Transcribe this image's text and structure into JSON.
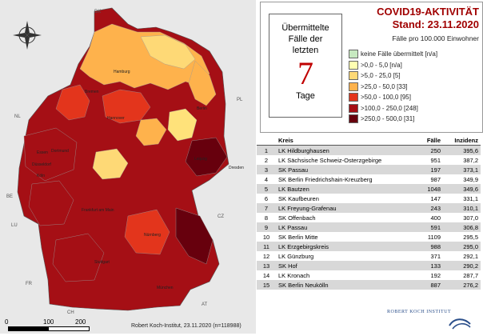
{
  "map": {
    "countries": [
      "DK",
      "NL",
      "BE",
      "LU",
      "FR",
      "CH",
      "AT",
      "CZ",
      "PL"
    ],
    "cities": [
      "Hamburg",
      "Bremen",
      "Hannover",
      "Berlin",
      "Essen",
      "Dortmund",
      "Düsseldorf",
      "Köln",
      "Leipzig",
      "Dresden",
      "Frankfurt am Main",
      "Nürnberg",
      "Stuttgart",
      "München"
    ],
    "scale": {
      "zero": "0",
      "mid": "100",
      "end": "200 km"
    },
    "credit": "Robert Koch-Institut, 23.11.2020 (n=118988)",
    "colors": {
      "c0": "#c7e9c0",
      "c1": "#ffffb2",
      "c2": "#fed976",
      "c3": "#feb24c",
      "c4": "#e3351c",
      "c5": "#a50f15",
      "c6": "#67000d"
    }
  },
  "panel": {
    "days_text_1": "Übermittelte",
    "days_text_2": "Fälle der",
    "days_text_3": "letzten",
    "days_number": "7",
    "days_unit": "Tage",
    "title_1": "COVID19-AKTIVITÄT",
    "title_2": "Stand: 23.11.2020",
    "subtitle": "Fälle pro 100.000 Einwohner",
    "legend": [
      {
        "label": "keine Fälle übermittelt [n/a]",
        "color": "#c7e9c0"
      },
      {
        "label": ">0,0 - 5,0 [n/a]",
        "color": "#ffffb2"
      },
      {
        "label": ">5,0 - 25,0 [5]",
        "color": "#fed976"
      },
      {
        "label": ">25,0 - 50,0 [33]",
        "color": "#feb24c"
      },
      {
        "label": ">50,0 - 100,0 [95]",
        "color": "#e3351c"
      },
      {
        "label": ">100,0 - 250,0 [248]",
        "color": "#a50f15"
      },
      {
        "label": ">250,0 - 500,0 [31]",
        "color": "#67000d"
      }
    ]
  },
  "table": {
    "headers": {
      "rank": "",
      "kreis": "Kreis",
      "faelle": "Fälle",
      "inzidenz": "Inzidenz"
    },
    "rows": [
      {
        "rank": "1",
        "kreis": "LK Hildburghausen",
        "faelle": "250",
        "inzidenz": "395,6"
      },
      {
        "rank": "2",
        "kreis": "LK Sächsische Schweiz-Osterzgebirge",
        "faelle": "951",
        "inzidenz": "387,2"
      },
      {
        "rank": "3",
        "kreis": "SK Passau",
        "faelle": "197",
        "inzidenz": "373,1"
      },
      {
        "rank": "4",
        "kreis": "SK Berlin Friedrichshain-Kreuzberg",
        "faelle": "987",
        "inzidenz": "349,9"
      },
      {
        "rank": "5",
        "kreis": "LK Bautzen",
        "faelle": "1048",
        "inzidenz": "349,6"
      },
      {
        "rank": "6",
        "kreis": "SK Kaufbeuren",
        "faelle": "147",
        "inzidenz": "331,1"
      },
      {
        "rank": "7",
        "kreis": "LK Freyung-Grafenau",
        "faelle": "243",
        "inzidenz": "310,1"
      },
      {
        "rank": "8",
        "kreis": "SK Offenbach",
        "faelle": "400",
        "inzidenz": "307,0"
      },
      {
        "rank": "9",
        "kreis": "LK Passau",
        "faelle": "591",
        "inzidenz": "306,8"
      },
      {
        "rank": "10",
        "kreis": "SK Berlin Mitte",
        "faelle": "1109",
        "inzidenz": "295,5"
      },
      {
        "rank": "11",
        "kreis": "LK Erzgebirgskreis",
        "faelle": "988",
        "inzidenz": "295,0"
      },
      {
        "rank": "12",
        "kreis": "LK Günzburg",
        "faelle": "371",
        "inzidenz": "292,1"
      },
      {
        "rank": "13",
        "kreis": "SK Hof",
        "faelle": "133",
        "inzidenz": "290,2"
      },
      {
        "rank": "14",
        "kreis": "LK Kronach",
        "faelle": "192",
        "inzidenz": "287,7"
      },
      {
        "rank": "15",
        "kreis": "SK Berlin Neukölln",
        "faelle": "887",
        "inzidenz": "276,2"
      }
    ]
  },
  "logo": {
    "text": "ROBERT KOCH INSTITUT"
  }
}
